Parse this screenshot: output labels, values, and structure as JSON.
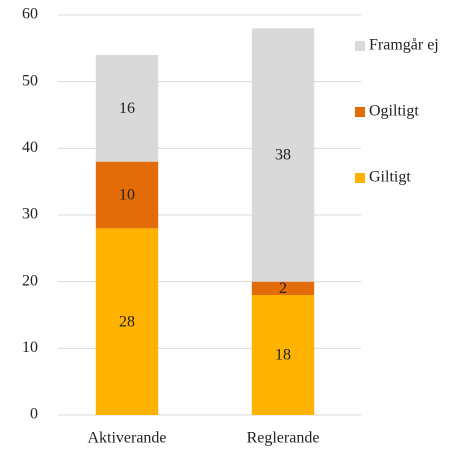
{
  "chart_data": {
    "type": "stacked_bar",
    "categories": [
      "Aktiverande",
      "Reglerande"
    ],
    "series": [
      {
        "name": "Giltigt",
        "color": "#FFB300",
        "values": [
          28,
          18
        ]
      },
      {
        "name": "Ogiltigt",
        "color": "#E36C09",
        "values": [
          10,
          2
        ]
      },
      {
        "name": "Framgår ej",
        "color": "#D9D9D9",
        "values": [
          16,
          38
        ]
      }
    ],
    "ylim": [
      0,
      60
    ],
    "yticks": [
      0,
      10,
      20,
      30,
      40,
      50,
      60
    ],
    "grid": true,
    "legend": "right"
  }
}
